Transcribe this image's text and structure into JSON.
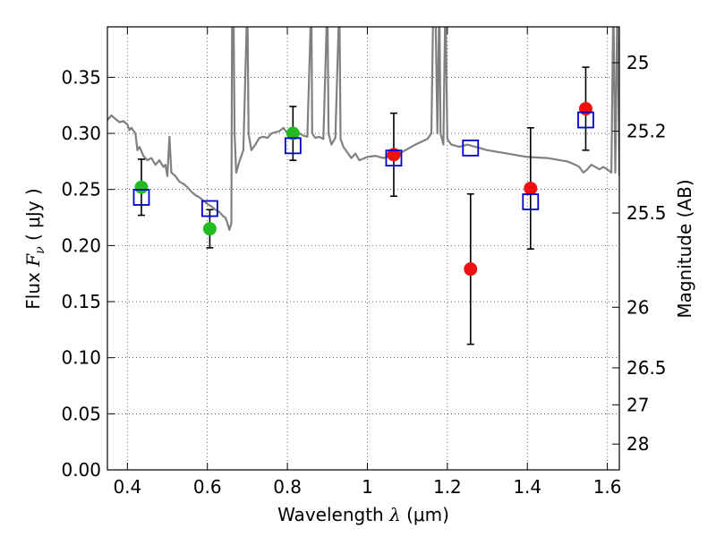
{
  "chart_data": {
    "type": "scatter",
    "xlabel": {
      "text": "Wavelength",
      "symbol": "λ",
      "unit": "(μm)"
    },
    "ylabel": {
      "text": "Flux",
      "symbol": "F",
      "subscript": "ν",
      "unit": "( μJy )"
    },
    "y2label": "Magnitude (AB)",
    "xlim": [
      0.35,
      1.63
    ],
    "ylim": [
      0.0,
      0.395
    ],
    "grid": true,
    "x_ticks": [
      {
        "value": 0.4,
        "label": "0.4"
      },
      {
        "value": 0.6,
        "label": "0.6"
      },
      {
        "value": 0.8,
        "label": "0.8"
      },
      {
        "value": 1.0,
        "label": "1"
      },
      {
        "value": 1.2,
        "label": "1.2"
      },
      {
        "value": 1.4,
        "label": "1.4"
      },
      {
        "value": 1.6,
        "label": "1.6"
      }
    ],
    "y_ticks": [
      {
        "value": 0.0,
        "label": "0.00"
      },
      {
        "value": 0.05,
        "label": "0.05"
      },
      {
        "value": 0.1,
        "label": "0.10"
      },
      {
        "value": 0.15,
        "label": "0.15"
      },
      {
        "value": 0.2,
        "label": "0.20"
      },
      {
        "value": 0.25,
        "label": "0.25"
      },
      {
        "value": 0.3,
        "label": "0.30"
      },
      {
        "value": 0.35,
        "label": "0.35"
      }
    ],
    "y2_ticks": [
      {
        "flux": 0.363,
        "label": "25"
      },
      {
        "flux": 0.302,
        "label": "25.2"
      },
      {
        "flux": 0.229,
        "label": "25.5"
      },
      {
        "flux": 0.145,
        "label": "26"
      },
      {
        "flux": 0.091,
        "label": "26.5"
      },
      {
        "flux": 0.058,
        "label": "27"
      },
      {
        "flux": 0.023,
        "label": "28"
      }
    ],
    "series": [
      {
        "marker": "circle",
        "color": "#22bb22",
        "points": [
          {
            "x": 0.435,
            "y": 0.252,
            "err": 0.025
          },
          {
            "x": 0.606,
            "y": 0.215,
            "err": 0.017
          },
          {
            "x": 0.814,
            "y": 0.3,
            "err": 0.024
          }
        ]
      },
      {
        "marker": "circle",
        "color": "#ee1111",
        "points": [
          {
            "x": 1.066,
            "y": 0.281,
            "err": 0.037
          },
          {
            "x": 1.258,
            "y": 0.179,
            "err": 0.067
          },
          {
            "x": 1.408,
            "y": 0.251,
            "err": 0.054
          },
          {
            "x": 1.546,
            "y": 0.322,
            "err": 0.037
          }
        ]
      },
      {
        "marker": "square-open",
        "color": "#0000cc",
        "points": [
          {
            "x": 0.435,
            "y": 0.243
          },
          {
            "x": 0.606,
            "y": 0.233
          },
          {
            "x": 0.814,
            "y": 0.289
          },
          {
            "x": 1.066,
            "y": 0.278
          },
          {
            "x": 1.258,
            "y": 0.287
          },
          {
            "x": 1.408,
            "y": 0.239
          },
          {
            "x": 1.546,
            "y": 0.312
          }
        ]
      }
    ],
    "spectrum": {
      "color": "#808080",
      "points": [
        [
          0.35,
          0.312
        ],
        [
          0.36,
          0.316
        ],
        [
          0.37,
          0.313
        ],
        [
          0.38,
          0.31
        ],
        [
          0.39,
          0.311
        ],
        [
          0.4,
          0.308
        ],
        [
          0.405,
          0.303
        ],
        [
          0.41,
          0.305
        ],
        [
          0.42,
          0.3
        ],
        [
          0.425,
          0.285
        ],
        [
          0.43,
          0.288
        ],
        [
          0.44,
          0.28
        ],
        [
          0.45,
          0.276
        ],
        [
          0.46,
          0.278
        ],
        [
          0.47,
          0.272
        ],
        [
          0.48,
          0.276
        ],
        [
          0.49,
          0.27
        ],
        [
          0.495,
          0.272
        ],
        [
          0.5,
          0.262
        ],
        [
          0.505,
          0.297
        ],
        [
          0.51,
          0.265
        ],
        [
          0.52,
          0.262
        ],
        [
          0.53,
          0.257
        ],
        [
          0.54,
          0.255
        ],
        [
          0.55,
          0.252
        ],
        [
          0.56,
          0.248
        ],
        [
          0.57,
          0.245
        ],
        [
          0.58,
          0.243
        ],
        [
          0.59,
          0.24
        ],
        [
          0.6,
          0.237
        ],
        [
          0.61,
          0.235
        ],
        [
          0.62,
          0.232
        ],
        [
          0.63,
          0.23
        ],
        [
          0.64,
          0.226
        ],
        [
          0.645,
          0.225
        ],
        [
          0.65,
          0.22
        ],
        [
          0.655,
          0.214
        ],
        [
          0.66,
          0.22
        ],
        [
          0.662,
          0.42
        ],
        [
          0.665,
          0.42
        ],
        [
          0.668,
          0.3
        ],
        [
          0.672,
          0.265
        ],
        [
          0.68,
          0.275
        ],
        [
          0.69,
          0.285
        ],
        [
          0.7,
          0.42
        ],
        [
          0.703,
          0.3
        ],
        [
          0.71,
          0.285
        ],
        [
          0.72,
          0.29
        ],
        [
          0.73,
          0.296
        ],
        [
          0.74,
          0.297
        ],
        [
          0.75,
          0.296
        ],
        [
          0.76,
          0.3
        ],
        [
          0.78,
          0.302
        ],
        [
          0.79,
          0.305
        ],
        [
          0.8,
          0.3
        ],
        [
          0.81,
          0.302
        ],
        [
          0.83,
          0.3
        ],
        [
          0.84,
          0.298
        ],
        [
          0.85,
          0.297
        ],
        [
          0.86,
          0.42
        ],
        [
          0.862,
          0.3
        ],
        [
          0.87,
          0.296
        ],
        [
          0.88,
          0.297
        ],
        [
          0.89,
          0.295
        ],
        [
          0.9,
          0.42
        ],
        [
          0.903,
          0.3
        ],
        [
          0.91,
          0.29
        ],
        [
          0.92,
          0.296
        ],
        [
          0.93,
          0.42
        ],
        [
          0.933,
          0.295
        ],
        [
          0.94,
          0.288
        ],
        [
          0.96,
          0.278
        ],
        [
          0.97,
          0.282
        ],
        [
          0.98,
          0.276
        ],
        [
          1.0,
          0.279
        ],
        [
          1.02,
          0.28
        ],
        [
          1.04,
          0.278
        ],
        [
          1.06,
          0.28
        ],
        [
          1.08,
          0.282
        ],
        [
          1.1,
          0.286
        ],
        [
          1.12,
          0.29
        ],
        [
          1.15,
          0.295
        ],
        [
          1.16,
          0.3
        ],
        [
          1.165,
          0.42
        ],
        [
          1.17,
          0.42
        ],
        [
          1.175,
          0.3
        ],
        [
          1.18,
          0.42
        ],
        [
          1.183,
          0.3
        ],
        [
          1.19,
          0.29
        ],
        [
          1.195,
          0.42
        ],
        [
          1.2,
          0.295
        ],
        [
          1.21,
          0.29
        ],
        [
          1.23,
          0.288
        ],
        [
          1.25,
          0.29
        ],
        [
          1.3,
          0.285
        ],
        [
          1.35,
          0.282
        ],
        [
          1.4,
          0.279
        ],
        [
          1.45,
          0.278
        ],
        [
          1.5,
          0.275
        ],
        [
          1.52,
          0.272
        ],
        [
          1.53,
          0.27
        ],
        [
          1.54,
          0.265
        ],
        [
          1.55,
          0.268
        ],
        [
          1.56,
          0.272
        ],
        [
          1.57,
          0.27
        ],
        [
          1.58,
          0.268
        ],
        [
          1.59,
          0.27
        ],
        [
          1.6,
          0.268
        ],
        [
          1.61,
          0.265
        ],
        [
          1.615,
          0.42
        ],
        [
          1.62,
          0.265
        ],
        [
          1.625,
          0.42
        ],
        [
          1.63,
          0.262
        ]
      ]
    }
  }
}
